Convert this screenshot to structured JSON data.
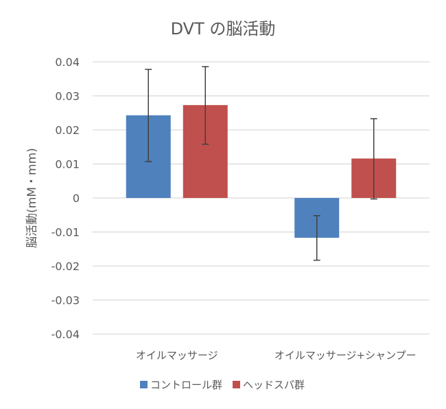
{
  "chart_data": {
    "type": "bar",
    "title": "DVT の脳活動",
    "xlabel": "",
    "ylabel": "脳活動(mM・mm)",
    "categories": [
      "オイルマッサージ",
      "オイルマッサージ+シャンプー"
    ],
    "series": [
      {
        "name": "コントロール群",
        "color": "#4f81bd",
        "values": [
          0.0243,
          -0.0117
        ],
        "error_low": [
          0.0107,
          -0.0183
        ],
        "error_high": [
          0.0378,
          -0.0052
        ]
      },
      {
        "name": "ヘッドスパ群",
        "color": "#c0504d",
        "values": [
          0.0273,
          0.0116
        ],
        "error_low": [
          0.0158,
          -0.0003
        ],
        "error_high": [
          0.0386,
          0.0233
        ]
      }
    ],
    "ylim": [
      -0.04,
      0.04
    ],
    "yticks": [
      0.04,
      0.03,
      0.02,
      0.01,
      0,
      -0.01,
      -0.02,
      -0.03,
      -0.04
    ],
    "ytick_labels": [
      "0.04",
      "0.03",
      "0.02",
      "0.01",
      "0",
      "-0.01",
      "-0.02",
      "-0.03",
      "-0.04"
    ],
    "grid": true,
    "legend_position": "bottom",
    "text_color": "#595959",
    "grid_color": "#d9d9d9",
    "error_bar_color": "#404040"
  }
}
